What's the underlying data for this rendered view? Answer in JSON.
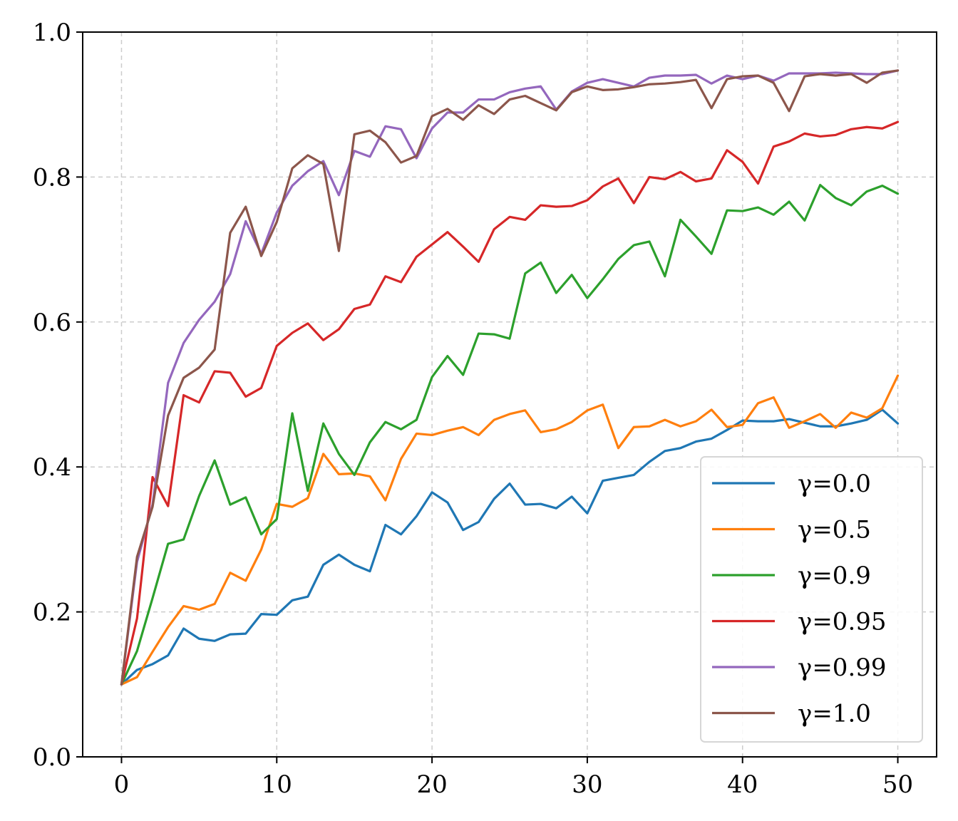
{
  "chart_data": {
    "type": "line",
    "title": "",
    "xlabel": "",
    "ylabel": "",
    "xlim": [
      -2.5,
      52.5
    ],
    "ylim": [
      0.0,
      1.0
    ],
    "x_ticks": [
      0,
      10,
      20,
      30,
      40,
      50
    ],
    "x_tick_labels": [
      "0",
      "10",
      "20",
      "30",
      "40",
      "50"
    ],
    "y_ticks": [
      0.0,
      0.2,
      0.4,
      0.6,
      0.8,
      1.0
    ],
    "y_tick_labels": [
      "0.0",
      "0.2",
      "0.4",
      "0.6",
      "0.8",
      "1.0"
    ],
    "grid": true,
    "legend_position": "bottom-right",
    "x": [
      0,
      1,
      2,
      3,
      4,
      5,
      6,
      7,
      8,
      9,
      10,
      11,
      12,
      13,
      14,
      15,
      16,
      17,
      18,
      19,
      20,
      21,
      22,
      23,
      24,
      25,
      26,
      27,
      28,
      29,
      30,
      31,
      32,
      33,
      34,
      35,
      36,
      37,
      38,
      39,
      40,
      41,
      42,
      43,
      44,
      45,
      46,
      47,
      48,
      49,
      50
    ],
    "series": [
      {
        "name": "γ=0.0",
        "color": "#1f77b4",
        "values": [
          0.1,
          0.12,
          0.128,
          0.14,
          0.177,
          0.163,
          0.16,
          0.169,
          0.17,
          0.197,
          0.196,
          0.216,
          0.221,
          0.265,
          0.279,
          0.265,
          0.256,
          0.32,
          0.307,
          0.332,
          0.365,
          0.351,
          0.313,
          0.324,
          0.356,
          0.377,
          0.348,
          0.349,
          0.343,
          0.359,
          0.336,
          0.381,
          0.385,
          0.389,
          0.407,
          0.422,
          0.426,
          0.435,
          0.439,
          0.451,
          0.464,
          0.463,
          0.463,
          0.466,
          0.461,
          0.456,
          0.456,
          0.46,
          0.465,
          0.479,
          0.46
        ]
      },
      {
        "name": "γ=0.5",
        "color": "#ff7f0e",
        "values": [
          0.1,
          0.11,
          0.145,
          0.179,
          0.208,
          0.203,
          0.211,
          0.254,
          0.243,
          0.286,
          0.349,
          0.345,
          0.357,
          0.418,
          0.39,
          0.391,
          0.387,
          0.354,
          0.411,
          0.446,
          0.444,
          0.45,
          0.455,
          0.444,
          0.465,
          0.473,
          0.478,
          0.448,
          0.452,
          0.462,
          0.478,
          0.486,
          0.426,
          0.455,
          0.456,
          0.465,
          0.456,
          0.463,
          0.479,
          0.455,
          0.458,
          0.488,
          0.496,
          0.454,
          0.463,
          0.473,
          0.454,
          0.475,
          0.468,
          0.481,
          0.526
        ]
      },
      {
        "name": "γ=0.9",
        "color": "#2ca02c",
        "values": [
          0.1,
          0.146,
          0.219,
          0.294,
          0.3,
          0.36,
          0.409,
          0.348,
          0.358,
          0.307,
          0.328,
          0.474,
          0.367,
          0.46,
          0.418,
          0.389,
          0.434,
          0.462,
          0.452,
          0.465,
          0.524,
          0.553,
          0.527,
          0.584,
          0.583,
          0.577,
          0.667,
          0.682,
          0.64,
          0.665,
          0.633,
          0.659,
          0.687,
          0.706,
          0.711,
          0.663,
          0.741,
          0.718,
          0.694,
          0.754,
          0.753,
          0.758,
          0.748,
          0.766,
          0.74,
          0.789,
          0.771,
          0.761,
          0.78,
          0.788,
          0.777
        ]
      },
      {
        "name": "γ=0.95",
        "color": "#d62728",
        "values": [
          0.1,
          0.191,
          0.386,
          0.346,
          0.499,
          0.489,
          0.532,
          0.53,
          0.497,
          0.509,
          0.567,
          0.585,
          0.598,
          0.575,
          0.59,
          0.618,
          0.624,
          0.663,
          0.655,
          0.69,
          0.707,
          0.724,
          0.704,
          0.683,
          0.728,
          0.745,
          0.741,
          0.761,
          0.759,
          0.76,
          0.768,
          0.787,
          0.798,
          0.764,
          0.8,
          0.797,
          0.807,
          0.794,
          0.798,
          0.837,
          0.821,
          0.791,
          0.842,
          0.849,
          0.86,
          0.856,
          0.858,
          0.866,
          0.869,
          0.867,
          0.876
        ]
      },
      {
        "name": "γ=0.99",
        "color": "#9467bd",
        "values": [
          0.1,
          0.269,
          0.348,
          0.516,
          0.571,
          0.603,
          0.628,
          0.666,
          0.739,
          0.694,
          0.751,
          0.788,
          0.808,
          0.822,
          0.775,
          0.836,
          0.828,
          0.87,
          0.866,
          0.826,
          0.867,
          0.889,
          0.889,
          0.907,
          0.907,
          0.917,
          0.922,
          0.925,
          0.893,
          0.918,
          0.93,
          0.935,
          0.93,
          0.925,
          0.937,
          0.94,
          0.94,
          0.941,
          0.929,
          0.94,
          0.935,
          0.94,
          0.933,
          0.943,
          0.943,
          0.943,
          0.944,
          0.943,
          0.942,
          0.942,
          0.947
        ]
      },
      {
        "name": "γ=1.0",
        "color": "#8c564b",
        "values": [
          0.1,
          0.276,
          0.345,
          0.471,
          0.523,
          0.537,
          0.562,
          0.723,
          0.759,
          0.691,
          0.738,
          0.812,
          0.83,
          0.818,
          0.698,
          0.859,
          0.864,
          0.848,
          0.82,
          0.829,
          0.884,
          0.894,
          0.879,
          0.899,
          0.887,
          0.907,
          0.912,
          0.902,
          0.892,
          0.917,
          0.925,
          0.92,
          0.921,
          0.924,
          0.928,
          0.929,
          0.931,
          0.934,
          0.895,
          0.935,
          0.939,
          0.94,
          0.93,
          0.891,
          0.939,
          0.942,
          0.94,
          0.942,
          0.93,
          0.944,
          0.947
        ]
      }
    ]
  }
}
